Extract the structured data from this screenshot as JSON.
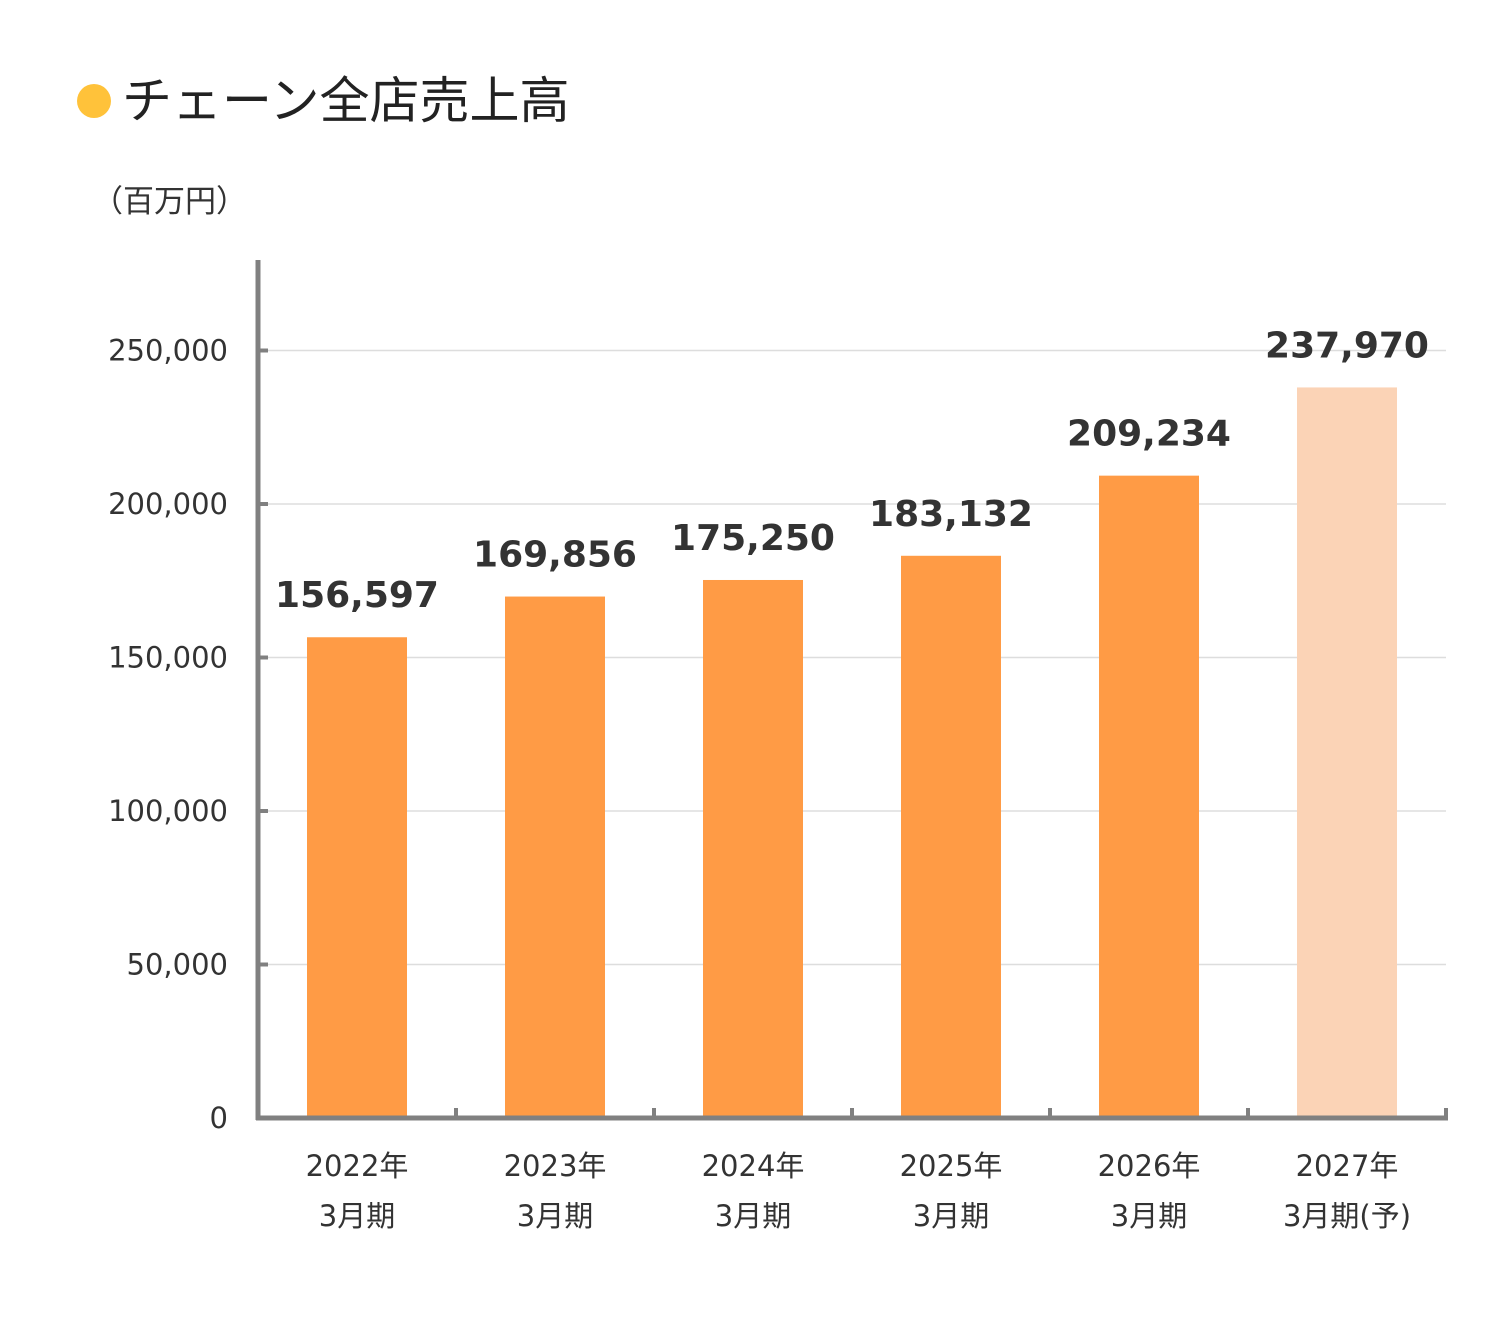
{
  "colors": {
    "title_marker": "#FFC23A",
    "bar_actual": "#FF9B45",
    "bar_forecast": "#FBD3B6",
    "axis": "#808080",
    "grid": "#DDDDDD"
  },
  "chart_data": {
    "type": "bar",
    "title": "チェーン全店売上高",
    "ylabel": "（百万円）",
    "xlabel": "",
    "ylim": [
      0,
      280000
    ],
    "yticks": [
      0,
      50000,
      100000,
      150000,
      200000,
      250000
    ],
    "ytick_labels": [
      "0",
      "50,000",
      "100,000",
      "150,000",
      "200,000",
      "250,000"
    ],
    "grid": true,
    "legend": "none",
    "categories": [
      {
        "line1": "2022年",
        "line2": "3月期"
      },
      {
        "line1": "2023年",
        "line2": "3月期"
      },
      {
        "line1": "2024年",
        "line2": "3月期"
      },
      {
        "line1": "2025年",
        "line2": "3月期"
      },
      {
        "line1": "2026年",
        "line2": "3月期"
      },
      {
        "line1": "2027年",
        "line2": "3月期(予)"
      }
    ],
    "values": [
      156597,
      169856,
      175250,
      183132,
      209234,
      237970
    ],
    "value_labels": [
      "156,597",
      "169,856",
      "175,250",
      "183,132",
      "209,234",
      "237,970"
    ],
    "forecast": [
      false,
      false,
      false,
      false,
      false,
      true
    ]
  }
}
